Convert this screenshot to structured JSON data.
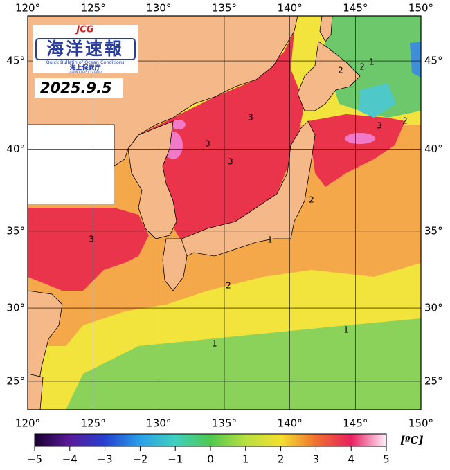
{
  "header": {
    "logo_mark": "JCG",
    "logo_title": "海洋速報",
    "logo_subtitle": "Quick Bulletin of Ocean Conditions",
    "logo_agency": "海上保安庁",
    "logo_agency_en": "JAPAN COAST GUARD",
    "date": "2025.9.5"
  },
  "map": {
    "xlim": [
      120,
      150
    ],
    "ylim": [
      23,
      47.4
    ],
    "xticks": [
      {
        "value": 120,
        "label": "120°"
      },
      {
        "value": 125,
        "label": "125°"
      },
      {
        "value": 130,
        "label": "130°"
      },
      {
        "value": 135,
        "label": "135°"
      },
      {
        "value": 140,
        "label": "140°"
      },
      {
        "value": 145,
        "label": "145°"
      },
      {
        "value": 150,
        "label": "150°"
      }
    ],
    "yticks": [
      {
        "value": 25,
        "label": "25°"
      },
      {
        "value": 30,
        "label": "30°"
      },
      {
        "value": 35,
        "label": "35°"
      },
      {
        "value": 40,
        "label": "40°"
      },
      {
        "value": 45,
        "label": "45°"
      }
    ],
    "contour_labels": [
      "3",
      "3",
      "3",
      "3",
      "3",
      "2",
      "2",
      "2",
      "2",
      "2",
      "1",
      "1",
      "1",
      "1"
    ]
  },
  "colorbar": {
    "range": [
      -5,
      5
    ],
    "unit": "[ºC]",
    "ticks": [
      {
        "value": -5,
        "label": "−5"
      },
      {
        "value": -4,
        "label": "−4"
      },
      {
        "value": -3,
        "label": "−3"
      },
      {
        "value": -2,
        "label": "−2"
      },
      {
        "value": -1,
        "label": "−1"
      },
      0,
      1,
      2,
      3,
      4,
      5
    ]
  }
}
